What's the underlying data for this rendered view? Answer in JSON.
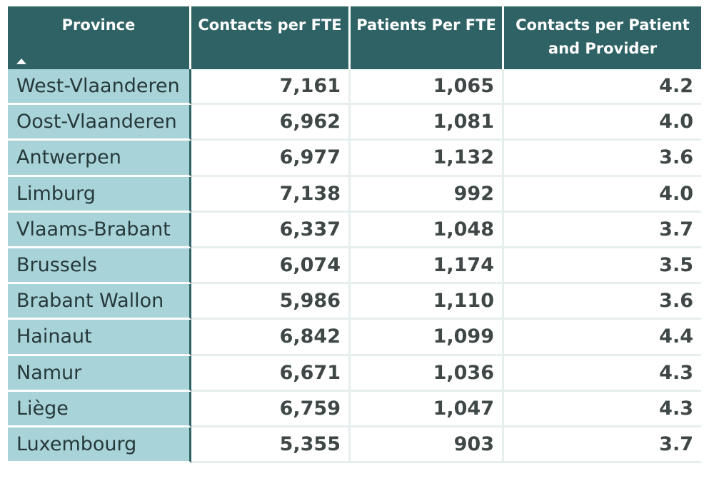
{
  "table": {
    "headers": {
      "province": "Province",
      "contacts_per_fte": "Contacts per FTE",
      "patients_per_fte": "Patients Per FTE",
      "contacts_per_patient_line1": "Contacts per Patient",
      "contacts_per_patient_line2": "and Provider"
    },
    "sort": {
      "column": "Province",
      "direction": "ascending",
      "icon": "sort-ascending-icon"
    },
    "rows": [
      {
        "province": "West-Vlaanderen",
        "contacts_per_fte": "7,161",
        "patients_per_fte": "1,065",
        "contacts_per_patient": "4.2"
      },
      {
        "province": "Oost-Vlaanderen",
        "contacts_per_fte": "6,962",
        "patients_per_fte": "1,081",
        "contacts_per_patient": "4.0"
      },
      {
        "province": "Antwerpen",
        "contacts_per_fte": "6,977",
        "patients_per_fte": "1,132",
        "contacts_per_patient": "3.6"
      },
      {
        "province": "Limburg",
        "contacts_per_fte": "7,138",
        "patients_per_fte": "992",
        "contacts_per_patient": "4.0"
      },
      {
        "province": "Vlaams-Brabant",
        "contacts_per_fte": "6,337",
        "patients_per_fte": "1,048",
        "contacts_per_patient": "3.7"
      },
      {
        "province": "Brussels",
        "contacts_per_fte": "6,074",
        "patients_per_fte": "1,174",
        "contacts_per_patient": "3.5"
      },
      {
        "province": "Brabant Wallon",
        "contacts_per_fte": "5,986",
        "patients_per_fte": "1,110",
        "contacts_per_patient": "3.6"
      },
      {
        "province": "Hainaut",
        "contacts_per_fte": "6,842",
        "patients_per_fte": "1,099",
        "contacts_per_patient": "4.4"
      },
      {
        "province": "Namur",
        "contacts_per_fte": "6,671",
        "patients_per_fte": "1,036",
        "contacts_per_patient": "4.3"
      },
      {
        "province": "Liège",
        "contacts_per_fte": "6,759",
        "patients_per_fte": "1,047",
        "contacts_per_patient": "4.3"
      },
      {
        "province": "Luxembourg",
        "contacts_per_fte": "5,355",
        "patients_per_fte": "903",
        "contacts_per_patient": "3.7"
      }
    ]
  },
  "colors": {
    "header_bg": "#2e6264",
    "row_header_bg": "#a8d3d9",
    "grid": "#e6eeee",
    "value_text": "#3f4747"
  }
}
